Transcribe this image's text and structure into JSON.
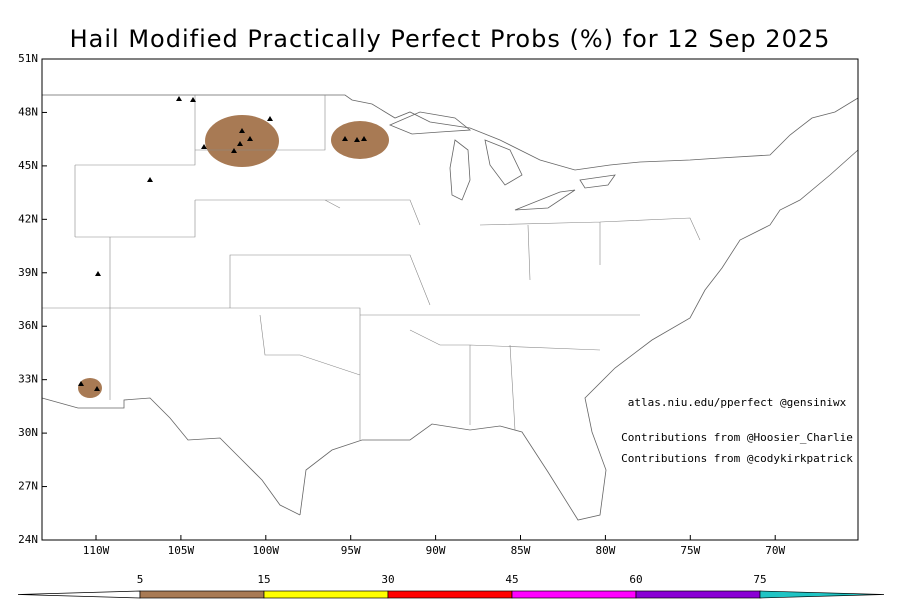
{
  "title": "Hail Modified Practically Perfect Probs (%) for 12 Sep 2025",
  "lat_labels": [
    "51N",
    "48N",
    "45N",
    "42N",
    "39N",
    "36N",
    "33N",
    "30N",
    "27N",
    "24N"
  ],
  "lon_labels": [
    "110W",
    "105W",
    "100W",
    "95W",
    "90W",
    "85W",
    "80W",
    "75W",
    "70W"
  ],
  "credits": [
    "atlas.niu.edu/pperfect @gensiniwx",
    "Contributions from @Hoosier_Charlie",
    "Contributions from @codykirkpatrick"
  ],
  "colorbar": {
    "levels": [
      5,
      15,
      30,
      45,
      60,
      75
    ],
    "colors": [
      "#ffffff",
      "#a87a54",
      "#ffff00",
      "#ff0000",
      "#ff00ff",
      "#8a00d4",
      "#1fc4c4"
    ]
  }
}
